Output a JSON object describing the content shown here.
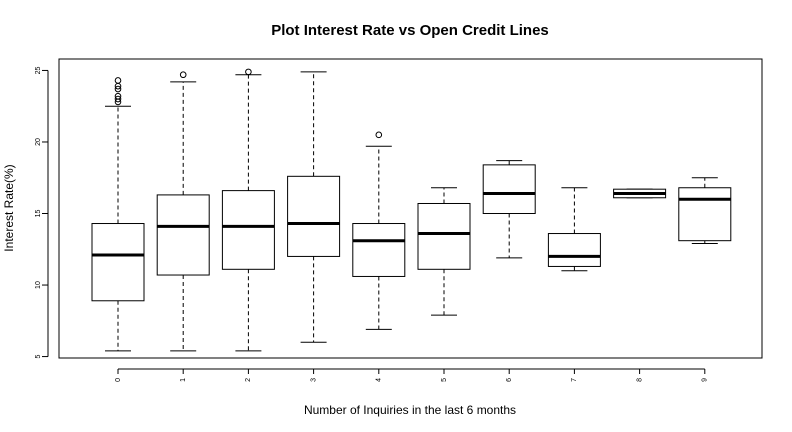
{
  "chart_data": {
    "type": "boxplot",
    "title": "Plot Interest Rate vs Open Credit Lines",
    "xlabel": "Number of Inquiries in the last 6 months",
    "ylabel": "Interest Rate(%)",
    "ylim": [
      4.9,
      25.8
    ],
    "yticks": [
      "5",
      "10",
      "15",
      "20",
      "25"
    ],
    "grid": false,
    "categories": [
      "0",
      "1",
      "2",
      "3",
      "4",
      "5",
      "6",
      "7",
      "8",
      "9"
    ],
    "boxes": [
      {
        "category": "0",
        "whisker_low": 5.4,
        "q1": 8.9,
        "median": 12.1,
        "q3": 14.3,
        "whisker_high": 22.5,
        "outliers": [
          22.8,
          23.0,
          23.2,
          23.7,
          23.9,
          24.3
        ]
      },
      {
        "category": "1",
        "whisker_low": 5.4,
        "q1": 10.7,
        "median": 14.1,
        "q3": 16.3,
        "whisker_high": 24.2,
        "outliers": [
          24.7
        ]
      },
      {
        "category": "2",
        "whisker_low": 5.4,
        "q1": 11.1,
        "median": 14.1,
        "q3": 16.6,
        "whisker_high": 24.7,
        "outliers": [
          24.9
        ]
      },
      {
        "category": "3",
        "whisker_low": 6.0,
        "q1": 12.0,
        "median": 14.3,
        "q3": 17.6,
        "whisker_high": 24.9,
        "outliers": []
      },
      {
        "category": "4",
        "whisker_low": 6.9,
        "q1": 10.6,
        "median": 13.1,
        "q3": 14.3,
        "whisker_high": 19.7,
        "outliers": [
          20.5
        ]
      },
      {
        "category": "5",
        "whisker_low": 7.9,
        "q1": 11.1,
        "median": 13.6,
        "q3": 15.7,
        "whisker_high": 16.8,
        "outliers": []
      },
      {
        "category": "6",
        "whisker_low": 11.9,
        "q1": 15.0,
        "median": 16.4,
        "q3": 18.4,
        "whisker_high": 18.7,
        "outliers": []
      },
      {
        "category": "7",
        "whisker_low": 11.0,
        "q1": 11.3,
        "median": 12.0,
        "q3": 13.6,
        "whisker_high": 16.8,
        "outliers": []
      },
      {
        "category": "8",
        "whisker_low": 16.1,
        "q1": 16.1,
        "median": 16.4,
        "q3": 16.7,
        "whisker_high": 16.7,
        "outliers": []
      },
      {
        "category": "9",
        "whisker_low": 12.9,
        "q1": 13.1,
        "median": 16.0,
        "q3": 16.8,
        "whisker_high": 17.5,
        "outliers": []
      }
    ]
  }
}
